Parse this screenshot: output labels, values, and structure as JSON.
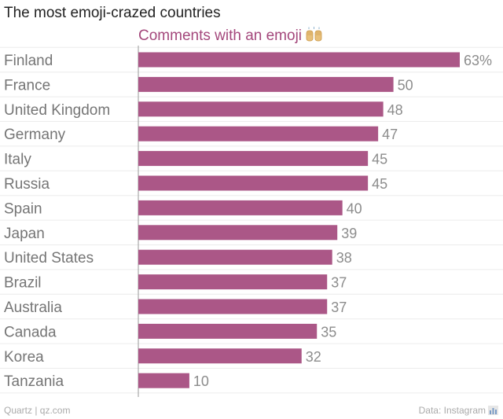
{
  "colors": {
    "bar": "#ab5787",
    "subtitle": "#a4487c",
    "grid": "#ececec"
  },
  "chart_data": {
    "type": "bar",
    "orientation": "horizontal",
    "title": "The most emoji-crazed countries",
    "subtitle": "Comments with an emoji",
    "subtitle_icon": "raising-hands-emoji",
    "categories": [
      "Finland",
      "France",
      "United Kingdom",
      "Germany",
      "Italy",
      "Russia",
      "Spain",
      "Japan",
      "United States",
      "Brazil",
      "Australia",
      "Canada",
      "Korea",
      "Tanzania"
    ],
    "values": [
      63,
      50,
      48,
      47,
      45,
      45,
      40,
      39,
      38,
      37,
      37,
      35,
      32,
      10
    ],
    "value_labels": [
      "63%",
      "50",
      "48",
      "47",
      "45",
      "45",
      "40",
      "39",
      "38",
      "37",
      "37",
      "35",
      "32",
      "10"
    ],
    "xlim": [
      0,
      63
    ],
    "grid": true,
    "legend": "none"
  },
  "footer": {
    "source_left": "Quartz | qz.com",
    "source_right": "Data: Instagram",
    "icon": "bar-chart-icon"
  }
}
